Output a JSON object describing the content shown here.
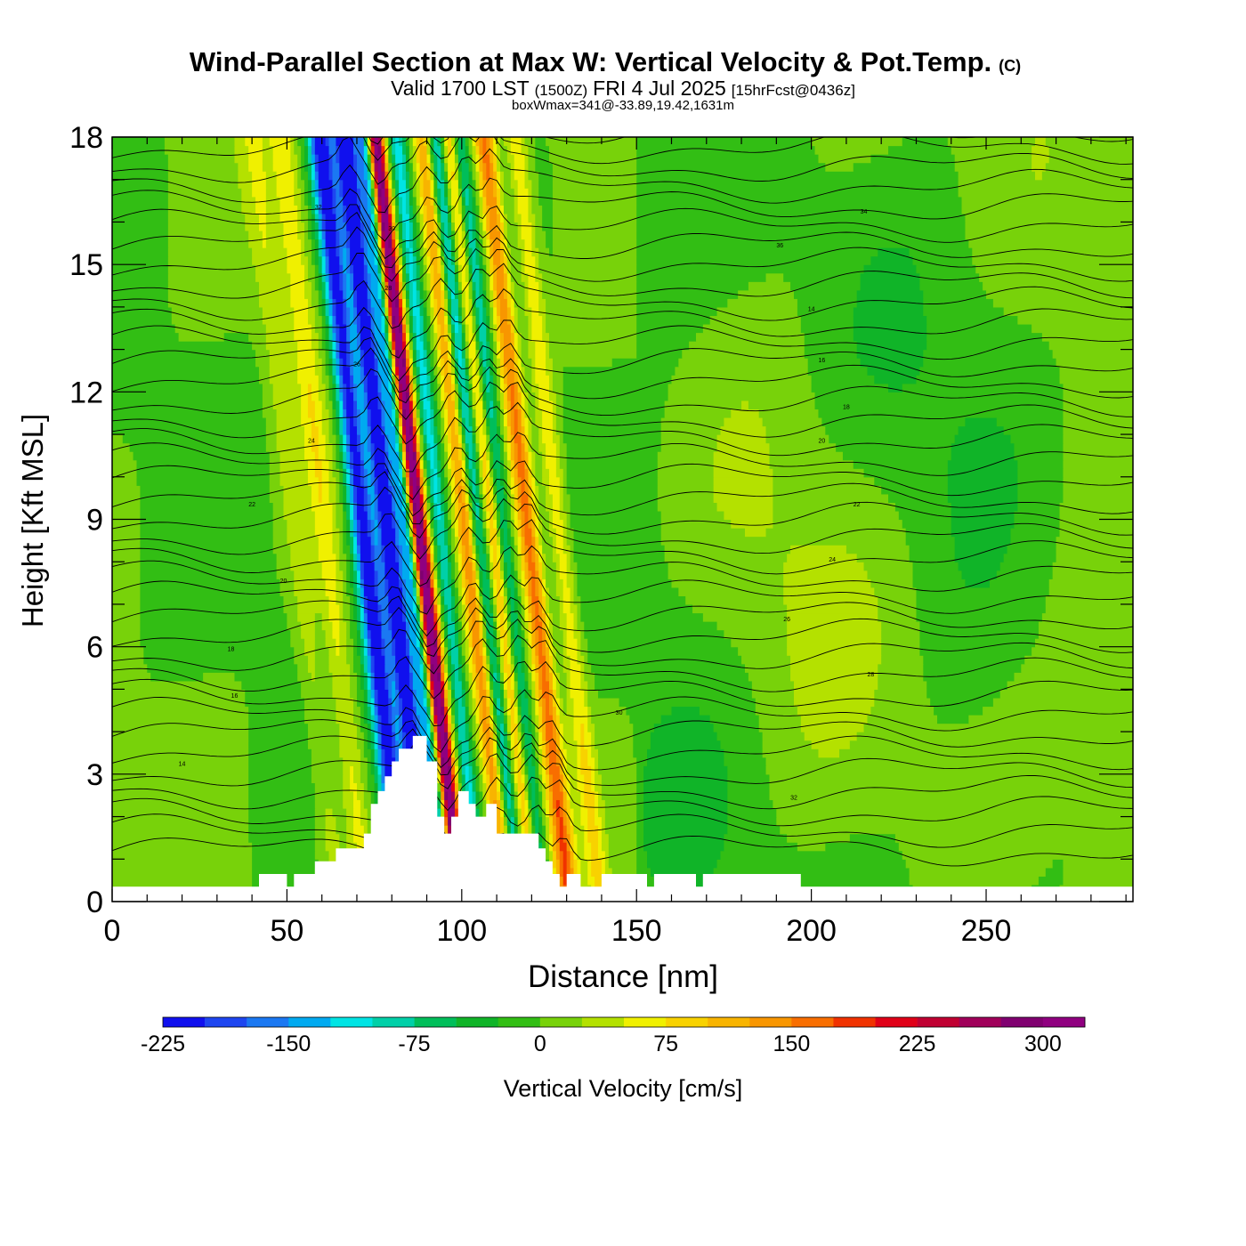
{
  "header": {
    "title": "Wind-Parallel Section at Max W: Vertical Velocity & Pot.Temp.",
    "copyright": "(C)",
    "subtitle_a": "Valid 1700 LST",
    "subtitle_b": "(1500Z)",
    "subtitle_c": "FRI 4 Jul 2025",
    "subtitle_d": "[15hrFcst@0436z]",
    "subtitle_small": "boxWmax=341@-33.89,19.42,1631m"
  },
  "chart_data": {
    "type": "heatmap",
    "xlabel": "Distance [nm]",
    "ylabel": "Height [Kft MSL]",
    "xlim": [
      0,
      292
    ],
    "ylim": [
      0,
      18
    ],
    "xticks": [
      0,
      50,
      100,
      150,
      200,
      250
    ],
    "yticks": [
      0,
      3,
      6,
      9,
      12,
      15,
      18
    ],
    "colorbar": {
      "label": "Vertical Velocity [cm/s]",
      "range": [
        -225,
        325
      ],
      "step": 25,
      "tick_values": [
        -225,
        -150,
        -75,
        0,
        75,
        150,
        225,
        300
      ],
      "colors": [
        "#1010ee",
        "#1e46f0",
        "#1b78f2",
        "#00aaf0",
        "#00e4e4",
        "#00d0a8",
        "#00be5a",
        "#10b428",
        "#32be14",
        "#78d20a",
        "#b4e100",
        "#f0f000",
        "#f8d200",
        "#f8b400",
        "#f89600",
        "#f86e00",
        "#f03200",
        "#e00018",
        "#c00032",
        "#a0005a",
        "#800070",
        "#900080"
      ]
    },
    "theta_contour_labels": [
      "14",
      "16",
      "18",
      "20",
      "22",
      "24",
      "26",
      "28",
      "30",
      "32",
      "34",
      "36"
    ],
    "terrain": {
      "x": [
        0,
        42,
        42,
        50,
        50,
        52,
        52,
        58,
        58,
        64,
        64,
        72,
        72,
        74,
        74,
        76,
        76,
        78,
        78,
        80,
        80,
        82,
        82,
        86,
        86,
        90,
        90,
        93,
        93,
        95,
        95,
        97,
        97,
        99,
        99,
        102,
        102,
        104,
        104,
        107,
        107,
        110,
        110,
        122,
        122,
        124,
        124,
        126,
        126,
        128,
        128,
        130,
        130,
        134,
        134,
        140,
        140,
        153,
        153,
        155,
        155,
        167,
        167,
        169,
        169,
        197,
        197,
        200,
        200,
        292
      ],
      "h": [
        0.35,
        0.35,
        0.65,
        0.65,
        0.35,
        0.35,
        0.65,
        0.65,
        0.95,
        0.95,
        1.25,
        1.25,
        1.6,
        1.6,
        2.3,
        2.3,
        2.6,
        2.6,
        2.95,
        2.95,
        3.3,
        3.3,
        3.6,
        3.6,
        3.9,
        3.9,
        3.3,
        3.3,
        2.0,
        2.0,
        1.6,
        1.6,
        2.0,
        2.0,
        2.6,
        2.6,
        2.3,
        2.3,
        2.0,
        2.0,
        2.3,
        2.3,
        1.6,
        1.6,
        1.25,
        1.25,
        0.95,
        0.95,
        0.65,
        0.65,
        0.35,
        0.35,
        0.65,
        0.65,
        0.35,
        0.35,
        0.65,
        0.65,
        0.35,
        0.35,
        0.65,
        0.65,
        0.35,
        0.35,
        0.65,
        0.65,
        0.35,
        0.35,
        0.35,
        0.35
      ]
    }
  }
}
